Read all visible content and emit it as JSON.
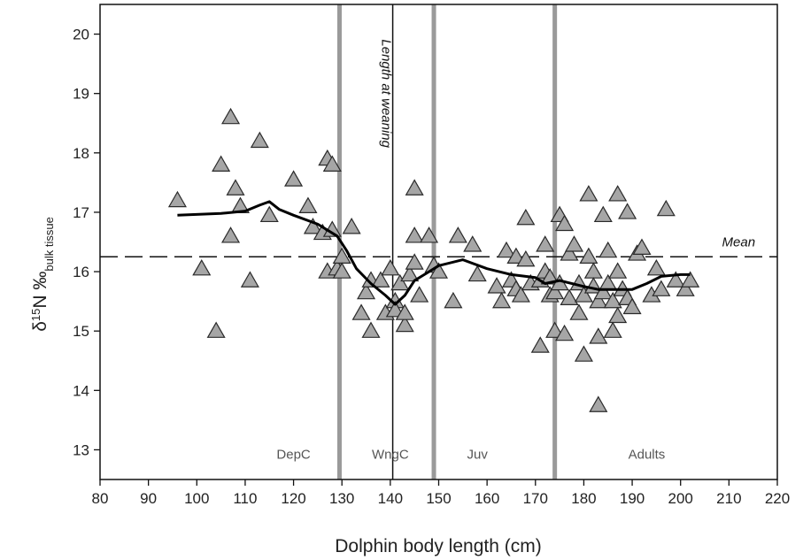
{
  "chart_data": {
    "type": "scatter",
    "title": "",
    "xlabel": "Dolphin body length (cm)",
    "ylabel": {
      "delta": "δ",
      "isotope_mass": "15",
      "element_unit": "N ‰",
      "subscript": "bulk tissue"
    },
    "xlim": [
      80,
      220
    ],
    "ylim": [
      12.5,
      20.5
    ],
    "x_ticks": [
      "80",
      "90",
      "100",
      "110",
      "120",
      "130",
      "140",
      "150",
      "160",
      "170",
      "180",
      "190",
      "200",
      "210",
      "220"
    ],
    "y_ticks": [
      "13",
      "14",
      "15",
      "16",
      "17",
      "18",
      "19",
      "20"
    ],
    "grid": false,
    "mean": {
      "y": 16.25,
      "label": "Mean"
    },
    "weaning": {
      "x": 140.5,
      "label": "Length at weaning"
    },
    "boundaries": [
      129.5,
      149,
      174
    ],
    "phases": [
      {
        "label": "DepC",
        "x": 120
      },
      {
        "label": "WngC",
        "x": 140
      },
      {
        "label": "Juv",
        "x": 158
      },
      {
        "label": "Adults",
        "x": 193
      }
    ],
    "colors": {
      "marker_fill": "#a6a6a6",
      "marker_stroke": "#2a2a2a",
      "boundary": "#9a9a9a",
      "trend": "#000000"
    },
    "points": [
      [
        96,
        17.2
      ],
      [
        101,
        16.05
      ],
      [
        104,
        15.0
      ],
      [
        105,
        17.8
      ],
      [
        107,
        18.6
      ],
      [
        107,
        16.6
      ],
      [
        108,
        17.4
      ],
      [
        109,
        17.1
      ],
      [
        111,
        15.85
      ],
      [
        113,
        18.2
      ],
      [
        115,
        16.95
      ],
      [
        120,
        17.55
      ],
      [
        123,
        17.1
      ],
      [
        124,
        16.75
      ],
      [
        126,
        16.65
      ],
      [
        127,
        17.9
      ],
      [
        127,
        16.0
      ],
      [
        128,
        17.8
      ],
      [
        128,
        16.7
      ],
      [
        129,
        16.05
      ],
      [
        130,
        16.25
      ],
      [
        130,
        16.0
      ],
      [
        132,
        16.75
      ],
      [
        134,
        15.3
      ],
      [
        135,
        15.65
      ],
      [
        136,
        15.85
      ],
      [
        136,
        15.0
      ],
      [
        138,
        15.85
      ],
      [
        139,
        15.3
      ],
      [
        140,
        16.05
      ],
      [
        141,
        15.5
      ],
      [
        141,
        15.35
      ],
      [
        142,
        15.8
      ],
      [
        143,
        15.1
      ],
      [
        143,
        15.3
      ],
      [
        144,
        15.95
      ],
      [
        145,
        16.15
      ],
      [
        145,
        17.4
      ],
      [
        145,
        16.6
      ],
      [
        146,
        15.6
      ],
      [
        148,
        16.6
      ],
      [
        149,
        16.1
      ],
      [
        150,
        16.0
      ],
      [
        153,
        15.5
      ],
      [
        154,
        16.6
      ],
      [
        157,
        16.45
      ],
      [
        158,
        15.95
      ],
      [
        162,
        15.75
      ],
      [
        163,
        15.5
      ],
      [
        164,
        16.35
      ],
      [
        165,
        15.85
      ],
      [
        166,
        15.7
      ],
      [
        166,
        16.25
      ],
      [
        167,
        15.6
      ],
      [
        168,
        16.9
      ],
      [
        168,
        16.2
      ],
      [
        169,
        15.8
      ],
      [
        171,
        15.85
      ],
      [
        171,
        14.75
      ],
      [
        172,
        16.45
      ],
      [
        172,
        16.0
      ],
      [
        173,
        15.6
      ],
      [
        173,
        15.9
      ],
      [
        174,
        15.65
      ],
      [
        174,
        15.0
      ],
      [
        175,
        16.95
      ],
      [
        175,
        15.8
      ],
      [
        176,
        16.8
      ],
      [
        176,
        14.95
      ],
      [
        177,
        16.3
      ],
      [
        177,
        15.55
      ],
      [
        178,
        16.45
      ],
      [
        179,
        15.8
      ],
      [
        179,
        15.3
      ],
      [
        180,
        14.6
      ],
      [
        180,
        15.6
      ],
      [
        181,
        16.25
      ],
      [
        181,
        17.3
      ],
      [
        182,
        16.0
      ],
      [
        182,
        15.75
      ],
      [
        183,
        15.5
      ],
      [
        183,
        14.9
      ],
      [
        183,
        13.75
      ],
      [
        184,
        16.95
      ],
      [
        184,
        15.65
      ],
      [
        185,
        16.35
      ],
      [
        185,
        15.8
      ],
      [
        186,
        15.5
      ],
      [
        186,
        15.0
      ],
      [
        187,
        17.3
      ],
      [
        187,
        16.0
      ],
      [
        187,
        15.25
      ],
      [
        188,
        15.7
      ],
      [
        189,
        17.0
      ],
      [
        189,
        15.55
      ],
      [
        190,
        15.4
      ],
      [
        191,
        16.3
      ],
      [
        192,
        16.4
      ],
      [
        194,
        15.6
      ],
      [
        195,
        16.05
      ],
      [
        196,
        15.7
      ],
      [
        197,
        17.05
      ],
      [
        199,
        15.85
      ],
      [
        201,
        15.7
      ],
      [
        202,
        15.85
      ]
    ],
    "trend": [
      [
        96,
        16.95
      ],
      [
        105,
        16.98
      ],
      [
        110,
        17.02
      ],
      [
        113,
        17.12
      ],
      [
        115,
        17.18
      ],
      [
        117,
        17.05
      ],
      [
        120,
        16.95
      ],
      [
        125,
        16.8
      ],
      [
        129,
        16.6
      ],
      [
        131,
        16.35
      ],
      [
        133,
        16.05
      ],
      [
        136,
        15.8
      ],
      [
        139,
        15.6
      ],
      [
        141,
        15.45
      ],
      [
        143,
        15.6
      ],
      [
        145,
        15.85
      ],
      [
        148,
        16.0
      ],
      [
        150,
        16.1
      ],
      [
        155,
        16.2
      ],
      [
        160,
        16.05
      ],
      [
        165,
        15.95
      ],
      [
        170,
        15.9
      ],
      [
        172,
        15.8
      ],
      [
        175,
        15.85
      ],
      [
        180,
        15.75
      ],
      [
        183,
        15.7
      ],
      [
        187,
        15.7
      ],
      [
        190,
        15.7
      ],
      [
        193,
        15.8
      ],
      [
        196,
        15.92
      ],
      [
        200,
        15.95
      ],
      [
        202,
        15.95
      ]
    ]
  }
}
